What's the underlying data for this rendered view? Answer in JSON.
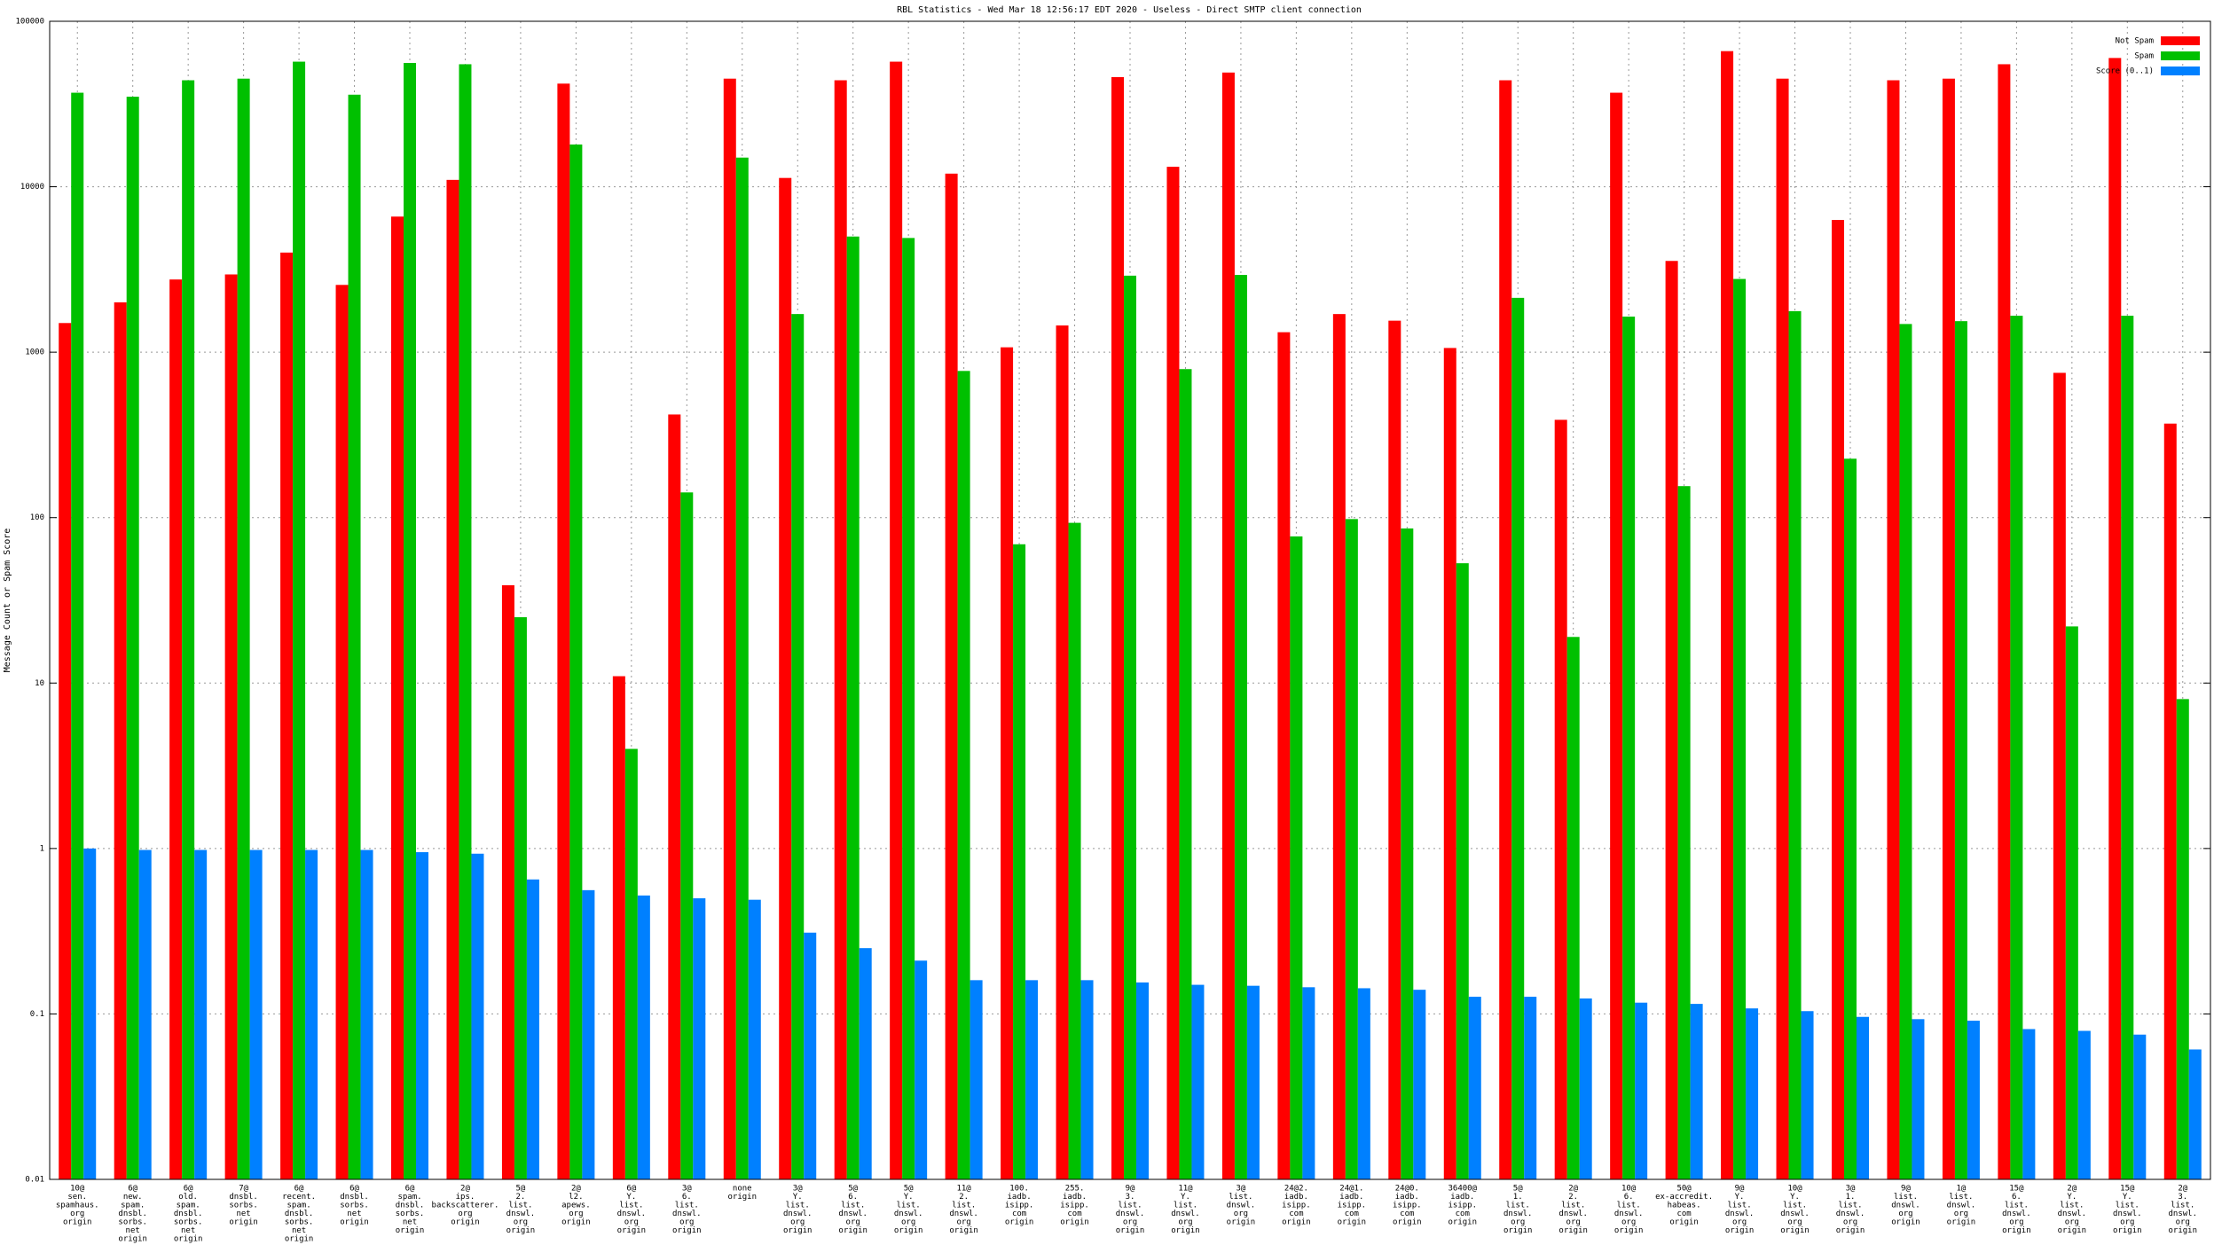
{
  "chart_data": {
    "type": "bar",
    "title": "RBL Statistics - Wed Mar 18 12:56:17 EDT 2020 - Useless - Direct SMTP client connection",
    "y_label": "Message Count or Spam Score",
    "log_scale": true,
    "grid": true,
    "legend": "top-right",
    "ylim": [
      0.01,
      100000
    ],
    "yticks": [
      0.01,
      0.1,
      1,
      10,
      100,
      1000,
      10000,
      100000
    ],
    "categories": [
      [
        "10@",
        "sen.",
        "spamhaus.",
        "org",
        "origin"
      ],
      [
        "6@",
        "new.",
        "spam.",
        "dnsbl.",
        "sorbs.",
        "net",
        "origin"
      ],
      [
        "6@",
        "old.",
        "spam.",
        "dnsbl.",
        "sorbs.",
        "net",
        "origin"
      ],
      [
        "7@",
        "dnsbl.",
        "sorbs.",
        "net",
        "origin"
      ],
      [
        "6@",
        "recent.",
        "spam.",
        "dnsbl.",
        "sorbs.",
        "net",
        "origin"
      ],
      [
        "6@",
        "dnsbl.",
        "sorbs.",
        "net",
        "origin"
      ],
      [
        "6@",
        "spam.",
        "dnsbl.",
        "sorbs.",
        "net",
        "origin"
      ],
      [
        "2@",
        "ips.",
        "backscatterer.",
        "org",
        "origin"
      ],
      [
        "5@",
        "2.",
        "list.",
        "dnswl.",
        "org",
        "origin"
      ],
      [
        "2@",
        "l2.",
        "apews.",
        "org",
        "origin"
      ],
      [
        "6@",
        "Y.",
        "list.",
        "dnswl.",
        "org",
        "origin"
      ],
      [
        "3@",
        "6.",
        "list.",
        "dnswl.",
        "org",
        "origin"
      ],
      [
        "none",
        "origin"
      ],
      [
        "3@",
        "Y.",
        "list.",
        "dnswl.",
        "org",
        "origin"
      ],
      [
        "5@",
        "6.",
        "list.",
        "dnswl.",
        "org",
        "origin"
      ],
      [
        "5@",
        "Y.",
        "list.",
        "dnswl.",
        "org",
        "origin"
      ],
      [
        "11@",
        "2.",
        "list.",
        "dnswl.",
        "org",
        "origin"
      ],
      [
        "100.",
        "iadb.",
        "isipp.",
        "com",
        "origin"
      ],
      [
        "255.",
        "iadb.",
        "isipp.",
        "com",
        "origin"
      ],
      [
        "9@",
        "3.",
        "list.",
        "dnswl.",
        "org",
        "origin"
      ],
      [
        "11@",
        "Y.",
        "list.",
        "dnswl.",
        "org",
        "origin"
      ],
      [
        "3@",
        "list.",
        "dnswl.",
        "org",
        "origin"
      ],
      [
        "24@2.",
        "iadb.",
        "isipp.",
        "com",
        "origin"
      ],
      [
        "24@1.",
        "iadb.",
        "isipp.",
        "com",
        "origin"
      ],
      [
        "24@0.",
        "iadb.",
        "isipp.",
        "com",
        "origin"
      ],
      [
        "36400@",
        "iadb.",
        "isipp.",
        "com",
        "origin"
      ],
      [
        "5@",
        "1.",
        "list.",
        "dnswl.",
        "org",
        "origin"
      ],
      [
        "2@",
        "2.",
        "list.",
        "dnswl.",
        "org",
        "origin"
      ],
      [
        "10@",
        "6.",
        "list.",
        "dnswl.",
        "org",
        "origin"
      ],
      [
        "50@",
        "ex-accredit.",
        "habeas.",
        "com",
        "origin"
      ],
      [
        "9@",
        "Y.",
        "list.",
        "dnswl.",
        "org",
        "origin"
      ],
      [
        "10@",
        "Y.",
        "list.",
        "dnswl.",
        "org",
        "origin"
      ],
      [
        "3@",
        "1.",
        "list.",
        "dnswl.",
        "org",
        "origin"
      ],
      [
        "9@",
        "list.",
        "dnswl.",
        "org",
        "origin"
      ],
      [
        "1@",
        "list.",
        "dnswl.",
        "org",
        "origin"
      ],
      [
        "15@",
        "6.",
        "list.",
        "dnswl.",
        "org",
        "origin"
      ],
      [
        "2@",
        "Y.",
        "list.",
        "dnswl.",
        "org",
        "origin"
      ],
      [
        "15@",
        "Y.",
        "list.",
        "dnswl.",
        "org",
        "origin"
      ],
      [
        "2@",
        "3.",
        "list.",
        "dnswl.",
        "org",
        "origin"
      ]
    ],
    "series": [
      {
        "name": "Not Spam",
        "color": "#ff0000",
        "values": [
          1500,
          2000,
          2750,
          2950,
          4000,
          2550,
          6600,
          11000,
          39,
          42000,
          11,
          420,
          45000,
          11300,
          44000,
          57000,
          12000,
          1070,
          1450,
          46000,
          13200,
          49000,
          1320,
          1700,
          1550,
          1060,
          44000,
          390,
          37000,
          3560,
          66000,
          45000,
          6300,
          44000,
          45000,
          55000,
          750,
          60000,
          370
        ]
      },
      {
        "name": "Spam",
        "color": "#00c000",
        "values": [
          37000,
          35000,
          44000,
          45000,
          57000,
          36000,
          56000,
          55000,
          25,
          18000,
          4,
          142,
          15000,
          1700,
          5000,
          4900,
          770,
          69,
          93,
          2900,
          790,
          2930,
          77,
          98,
          86,
          53,
          2130,
          19,
          1640,
          155,
          2770,
          1770,
          227,
          1480,
          1540,
          1660,
          22,
          1660,
          8
        ]
      },
      {
        "name": "Score (0..1)",
        "color": "#0080ff",
        "values": [
          1.0,
          0.98,
          0.98,
          0.98,
          0.98,
          0.98,
          0.95,
          0.93,
          0.65,
          0.56,
          0.52,
          0.5,
          0.49,
          0.31,
          0.25,
          0.21,
          0.16,
          0.16,
          0.16,
          0.155,
          0.15,
          0.148,
          0.145,
          0.143,
          0.14,
          0.127,
          0.127,
          0.124,
          0.117,
          0.115,
          0.108,
          0.104,
          0.096,
          0.093,
          0.091,
          0.081,
          0.079,
          0.075,
          0.061
        ]
      }
    ]
  }
}
